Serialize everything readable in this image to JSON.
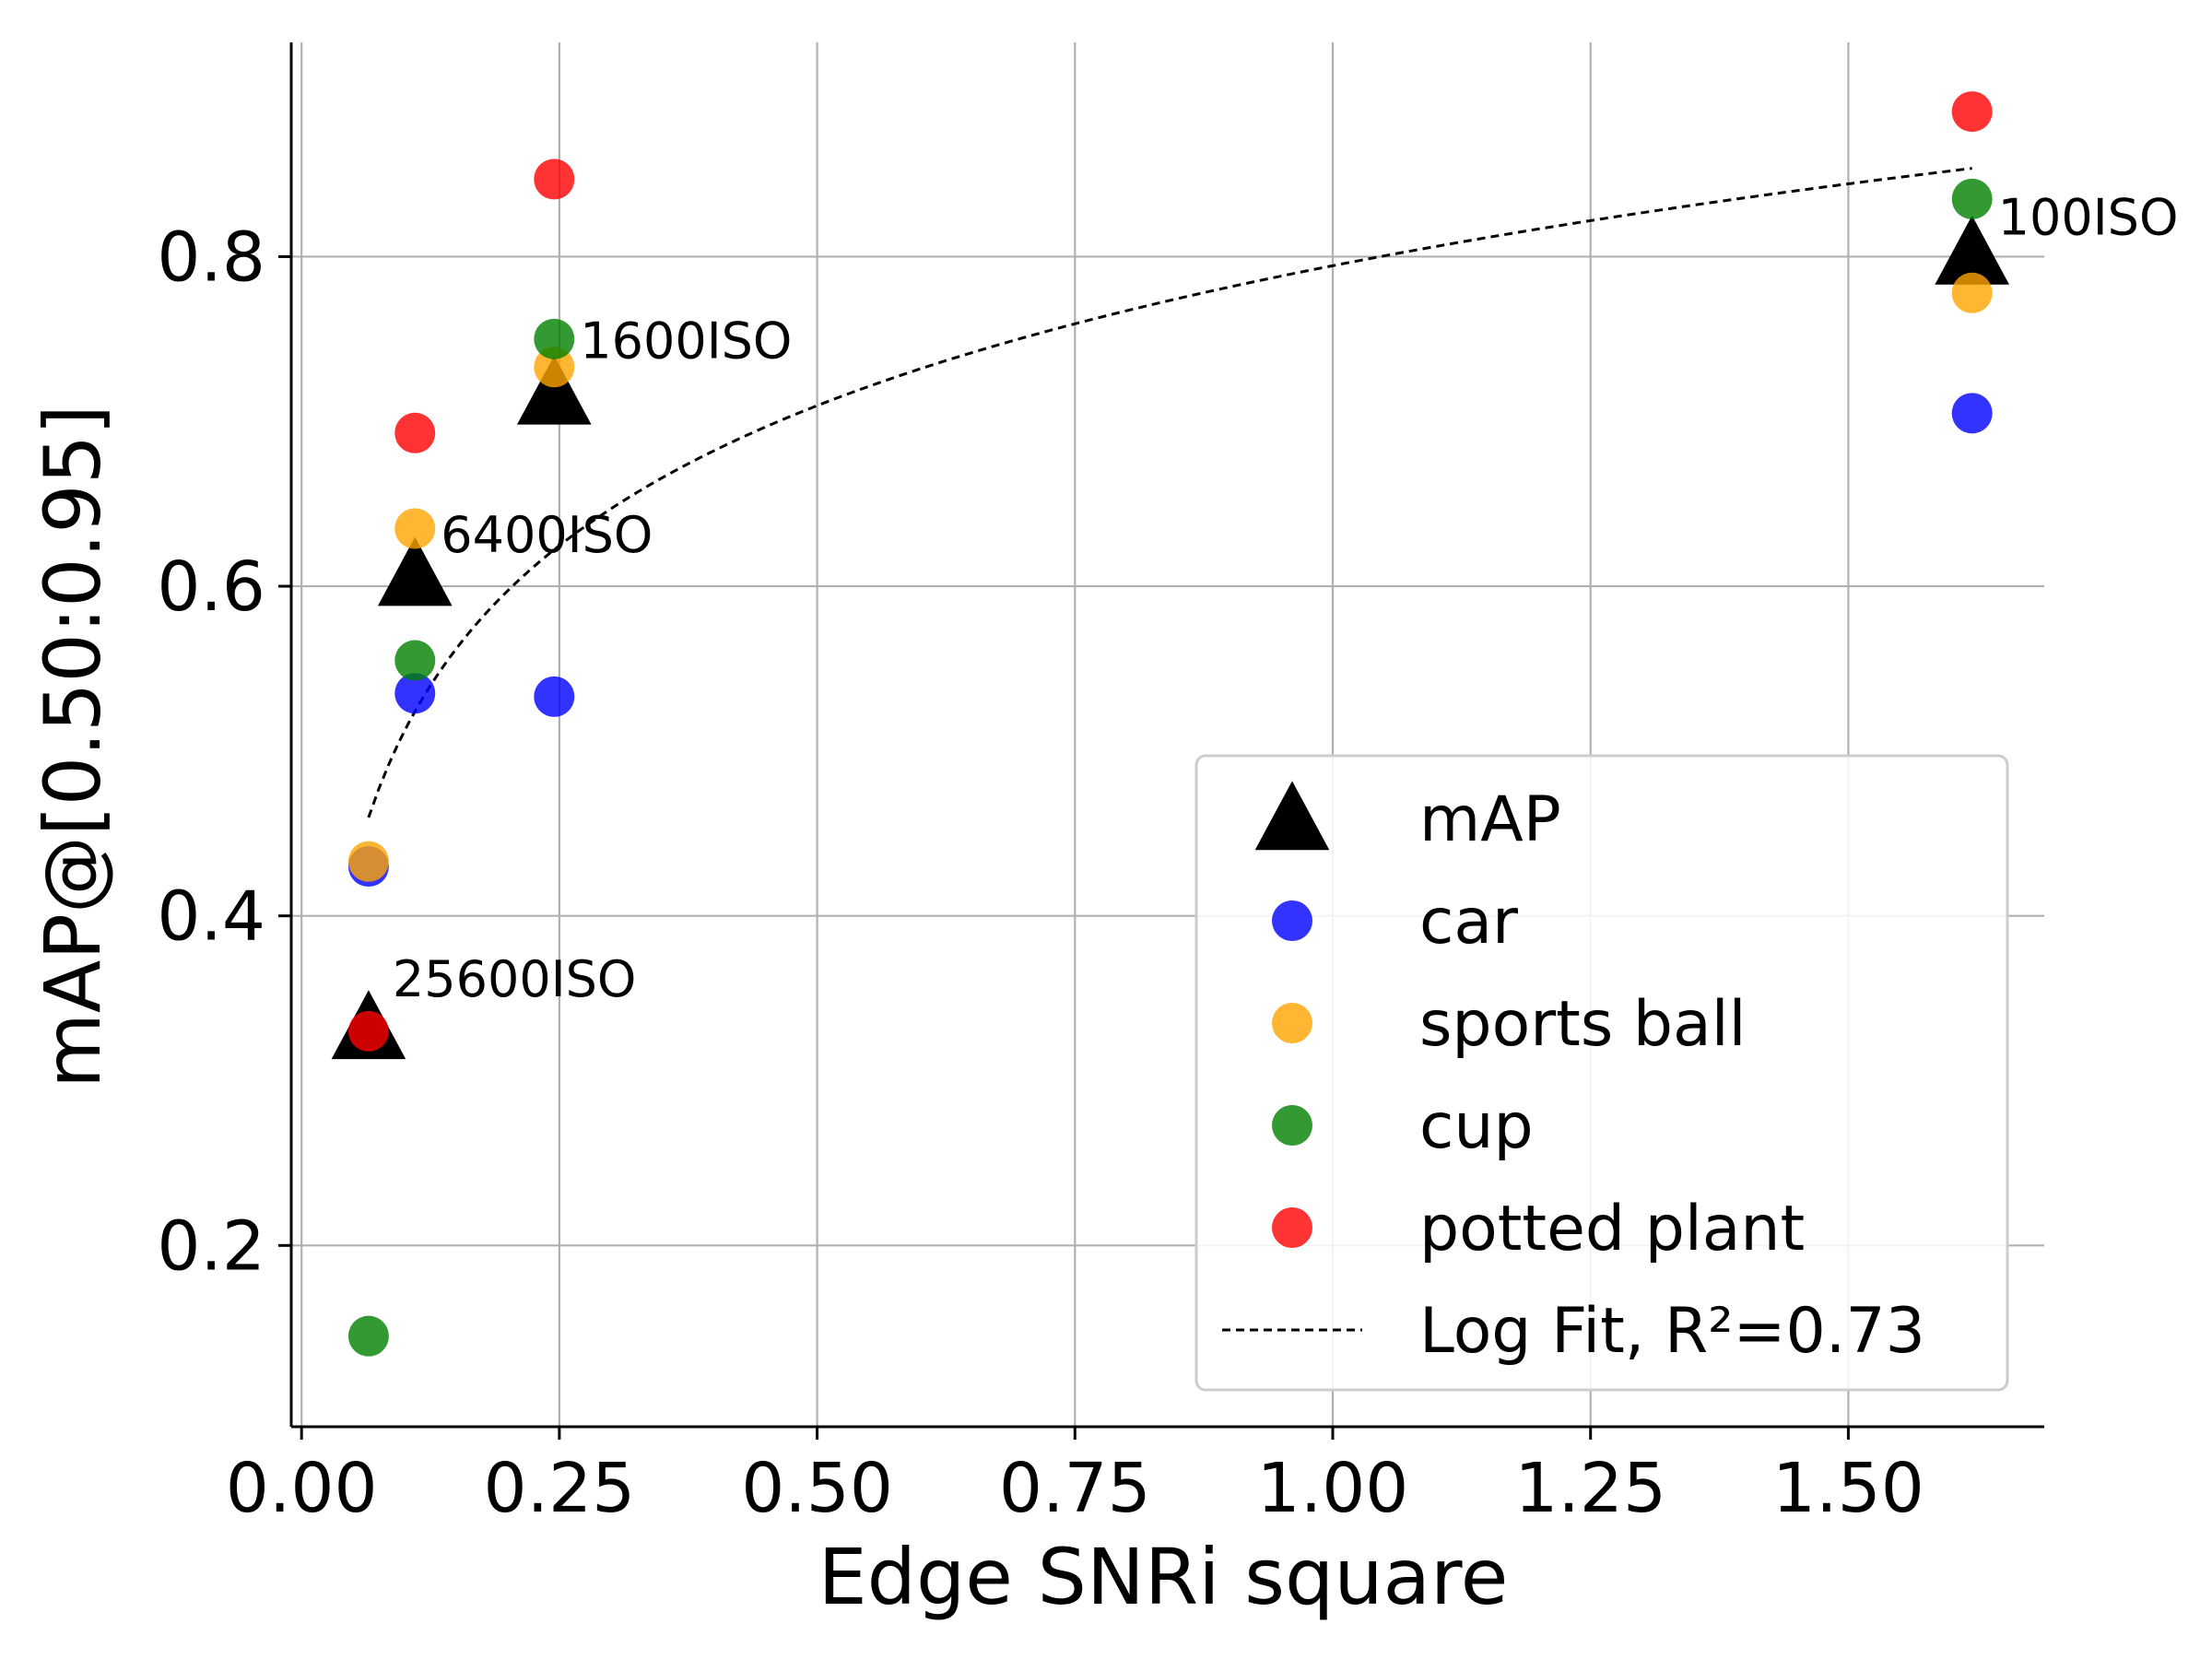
{
  "chart_data": {
    "type": "scatter",
    "title": "",
    "xlabel": "Edge SNRi square",
    "ylabel": "mAP@[0.50:0.95]",
    "xlim": [
      -0.01,
      1.69
    ],
    "ylim": [
      0.09,
      0.93
    ],
    "x_ticks": [
      0.0,
      0.25,
      0.5,
      0.75,
      1.0,
      1.25,
      1.5
    ],
    "x_tick_labels": [
      "0.00",
      "0.25",
      "0.50",
      "0.75",
      "1.00",
      "1.25",
      "1.50"
    ],
    "y_ticks": [
      0.2,
      0.4,
      0.6,
      0.8
    ],
    "y_tick_labels": [
      "0.2",
      "0.4",
      "0.6",
      "0.8"
    ],
    "grid": true,
    "legend_position": "lower-right",
    "series": [
      {
        "name": "mAP",
        "marker": "triangle",
        "color": "#000000",
        "x": [
          0.065,
          0.11,
          0.245,
          1.62
        ],
        "y": [
          0.33,
          0.605,
          0.715,
          0.8
        ]
      },
      {
        "name": "car",
        "marker": "circle",
        "color": "#0000ff",
        "x": [
          0.065,
          0.11,
          0.245,
          1.62
        ],
        "y": [
          0.43,
          0.535,
          0.533,
          0.705
        ]
      },
      {
        "name": "sports ball",
        "marker": "circle",
        "color": "#ffa500",
        "x": [
          0.065,
          0.11,
          0.245,
          1.62
        ],
        "y": [
          0.433,
          0.635,
          0.733,
          0.778
        ]
      },
      {
        "name": "cup",
        "marker": "circle",
        "color": "#008000",
        "x": [
          0.065,
          0.11,
          0.245,
          1.62
        ],
        "y": [
          0.145,
          0.555,
          0.75,
          0.835
        ]
      },
      {
        "name": "potted plant",
        "marker": "circle",
        "color": "#ff0000",
        "x": [
          0.065,
          0.11,
          0.245,
          1.62
        ],
        "y": [
          0.33,
          0.693,
          0.847,
          0.888
        ]
      }
    ],
    "fit": {
      "name": "Log Fit, R²=0.73",
      "style": "dashed",
      "color": "#000000",
      "model": "y = a + b*ln(x)",
      "a": 0.7945,
      "b": 0.1225,
      "x_range": [
        0.065,
        1.62
      ]
    },
    "annotations": [
      {
        "text": "100ISO",
        "x": 1.62,
        "y": 0.8
      },
      {
        "text": "1600ISO",
        "x": 0.245,
        "y": 0.715
      },
      {
        "text": "6400ISO",
        "x": 0.11,
        "y": 0.605
      },
      {
        "text": "25600ISO",
        "x": 0.065,
        "y": 0.33
      }
    ]
  }
}
